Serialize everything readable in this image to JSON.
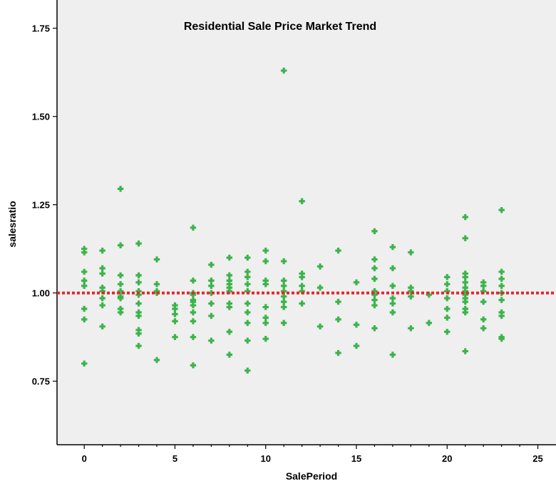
{
  "chart_data": {
    "type": "scatter",
    "title": "Residential Sale Price Market Trend",
    "xlabel": "SalePeriod",
    "ylabel": "salesratio",
    "xlim": [
      -1.5,
      26
    ],
    "ylim": [
      0.57,
      1.83
    ],
    "xticks": [
      0,
      5,
      10,
      15,
      20,
      25
    ],
    "yticks": [
      0.75,
      1.0,
      1.25,
      1.5,
      1.75
    ],
    "ytick_labels": [
      "0.75",
      "1.00",
      "1.25",
      "1.50",
      "1.75"
    ],
    "grid": false,
    "reference_line": {
      "y": 1.0,
      "style": "dotted",
      "color": "#e8262b"
    },
    "marker": {
      "shape": "plus",
      "color": "#3cb44b"
    },
    "colors": {
      "plot_background": "#efefef",
      "points": "#3cb44b",
      "reference_line": "#e8262b",
      "axis": "#000000"
    },
    "series": [
      {
        "points": [
          [
            0,
            1.125
          ],
          [
            0,
            1.115
          ],
          [
            0,
            1.06
          ],
          [
            0,
            1.035
          ],
          [
            0,
            1.02
          ],
          [
            0,
            0.955
          ],
          [
            0,
            0.925
          ],
          [
            0,
            0.8
          ],
          [
            1,
            1.12
          ],
          [
            1,
            1.07
          ],
          [
            1,
            1.055
          ],
          [
            1,
            1.015
          ],
          [
            1,
            1.005
          ],
          [
            1,
            0.985
          ],
          [
            1,
            0.965
          ],
          [
            1,
            0.905
          ],
          [
            2,
            1.295
          ],
          [
            2,
            1.135
          ],
          [
            2,
            1.05
          ],
          [
            2,
            1.025
          ],
          [
            2,
            1.005
          ],
          [
            2,
            0.99
          ],
          [
            2,
            0.985
          ],
          [
            2,
            0.955
          ],
          [
            2,
            0.945
          ],
          [
            3,
            1.14
          ],
          [
            3,
            1.05
          ],
          [
            3,
            1.03
          ],
          [
            3,
            1.005
          ],
          [
            3,
            0.995
          ],
          [
            3,
            0.97
          ],
          [
            3,
            0.945
          ],
          [
            3,
            0.935
          ],
          [
            3,
            0.895
          ],
          [
            3,
            0.885
          ],
          [
            3,
            0.85
          ],
          [
            4,
            1.095
          ],
          [
            4,
            1.025
          ],
          [
            4,
            1.005
          ],
          [
            4,
            1.0
          ],
          [
            4,
            0.81
          ],
          [
            5,
            0.965
          ],
          [
            5,
            0.955
          ],
          [
            5,
            0.94
          ],
          [
            5,
            0.92
          ],
          [
            5,
            0.875
          ],
          [
            6,
            1.185
          ],
          [
            6,
            1.035
          ],
          [
            6,
            1.0
          ],
          [
            6,
            0.995
          ],
          [
            6,
            0.98
          ],
          [
            6,
            0.975
          ],
          [
            6,
            0.965
          ],
          [
            6,
            0.945
          ],
          [
            6,
            0.92
          ],
          [
            6,
            0.875
          ],
          [
            6,
            0.795
          ],
          [
            7,
            1.08
          ],
          [
            7,
            1.035
          ],
          [
            7,
            1.02
          ],
          [
            7,
            1.0
          ],
          [
            7,
            0.97
          ],
          [
            7,
            0.935
          ],
          [
            7,
            0.865
          ],
          [
            8,
            1.1
          ],
          [
            8,
            1.05
          ],
          [
            8,
            1.035
          ],
          [
            8,
            1.025
          ],
          [
            8,
            1.015
          ],
          [
            8,
            1.005
          ],
          [
            8,
            0.97
          ],
          [
            8,
            0.96
          ],
          [
            8,
            0.89
          ],
          [
            8,
            0.825
          ],
          [
            9,
            1.1
          ],
          [
            9,
            1.06
          ],
          [
            9,
            1.045
          ],
          [
            9,
            1.025
          ],
          [
            9,
            1.005
          ],
          [
            9,
            0.97
          ],
          [
            9,
            0.945
          ],
          [
            9,
            0.915
          ],
          [
            9,
            0.865
          ],
          [
            9,
            0.78
          ],
          [
            10,
            1.12
          ],
          [
            10,
            1.09
          ],
          [
            10,
            1.035
          ],
          [
            10,
            1.025
          ],
          [
            10,
            0.96
          ],
          [
            10,
            0.93
          ],
          [
            10,
            0.915
          ],
          [
            10,
            0.87
          ],
          [
            11,
            1.63
          ],
          [
            11,
            1.09
          ],
          [
            11,
            1.035
          ],
          [
            11,
            1.02
          ],
          [
            11,
            1.005
          ],
          [
            11,
            0.99
          ],
          [
            11,
            0.975
          ],
          [
            11,
            0.96
          ],
          [
            11,
            0.915
          ],
          [
            12,
            1.26
          ],
          [
            12,
            1.055
          ],
          [
            12,
            1.045
          ],
          [
            12,
            1.02
          ],
          [
            12,
            1.005
          ],
          [
            12,
            0.97
          ],
          [
            13,
            1.075
          ],
          [
            13,
            1.015
          ],
          [
            13,
            0.905
          ],
          [
            14,
            1.12
          ],
          [
            14,
            0.975
          ],
          [
            14,
            0.925
          ],
          [
            14,
            0.83
          ],
          [
            15,
            1.03
          ],
          [
            15,
            0.91
          ],
          [
            15,
            0.85
          ],
          [
            16,
            1.175
          ],
          [
            16,
            1.095
          ],
          [
            16,
            1.07
          ],
          [
            16,
            1.04
          ],
          [
            16,
            1.005
          ],
          [
            16,
            0.995
          ],
          [
            16,
            0.98
          ],
          [
            16,
            0.965
          ],
          [
            16,
            0.9
          ],
          [
            17,
            1.13
          ],
          [
            17,
            1.07
          ],
          [
            17,
            1.02
          ],
          [
            17,
            0.985
          ],
          [
            17,
            0.97
          ],
          [
            17,
            0.945
          ],
          [
            17,
            0.825
          ],
          [
            18,
            1.115
          ],
          [
            18,
            1.015
          ],
          [
            18,
            1.005
          ],
          [
            18,
            0.99
          ],
          [
            18,
            0.9
          ],
          [
            19,
            0.995
          ],
          [
            19,
            0.915
          ],
          [
            20,
            1.045
          ],
          [
            20,
            1.025
          ],
          [
            20,
            1.005
          ],
          [
            20,
            0.985
          ],
          [
            20,
            0.955
          ],
          [
            20,
            0.93
          ],
          [
            20,
            0.89
          ],
          [
            21,
            1.215
          ],
          [
            21,
            1.155
          ],
          [
            21,
            1.055
          ],
          [
            21,
            1.045
          ],
          [
            21,
            1.03
          ],
          [
            21,
            1.015
          ],
          [
            21,
            1.005
          ],
          [
            21,
            0.995
          ],
          [
            21,
            0.985
          ],
          [
            21,
            0.975
          ],
          [
            21,
            0.955
          ],
          [
            21,
            0.945
          ],
          [
            21,
            0.835
          ],
          [
            22,
            1.03
          ],
          [
            22,
            1.02
          ],
          [
            22,
            1.005
          ],
          [
            22,
            0.975
          ],
          [
            22,
            0.925
          ],
          [
            22,
            0.9
          ],
          [
            23,
            1.235
          ],
          [
            23,
            1.06
          ],
          [
            23,
            1.04
          ],
          [
            23,
            1.02
          ],
          [
            23,
            1.0
          ],
          [
            23,
            0.98
          ],
          [
            23,
            0.945
          ],
          [
            23,
            0.935
          ],
          [
            23,
            0.875
          ],
          [
            23,
            0.87
          ]
        ]
      }
    ]
  }
}
